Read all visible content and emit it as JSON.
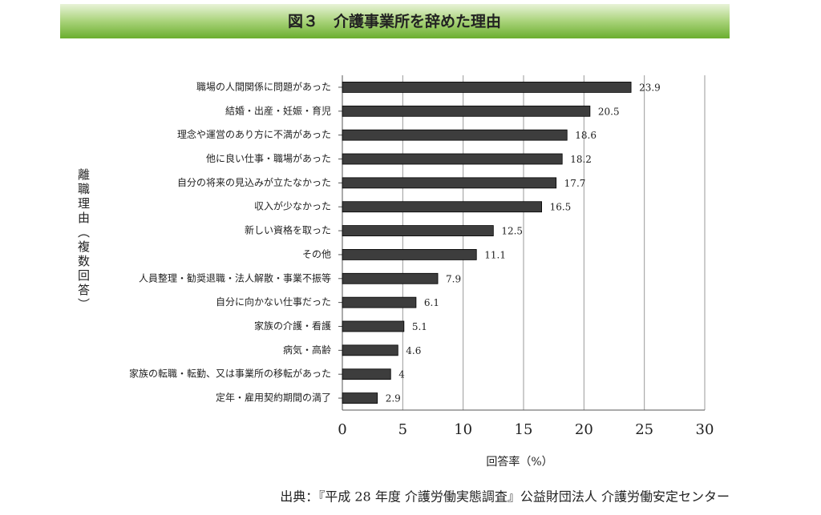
{
  "chart_data": {
    "type": "bar",
    "orientation": "horizontal",
    "title": "図３　介護事業所を辞めた理由",
    "y_label": "離職理由（複数回答）",
    "x_label": "回答率（%）",
    "source": "出典：『平成 28 年度  介護労働実態調査』公益財団法人  介護労働安定センター",
    "categories": [
      "職場の人間関係に問題があった",
      "結婚・出産・妊娠・育児",
      "理念や運営のあり方に不満があった",
      "他に良い仕事・職場があった",
      "自分の将来の見込みが立たなかった",
      "収入が少なかった",
      "新しい資格を取った",
      "その他",
      "人員整理・勧奨退職・法人解散・事業不振等",
      "自分に向かない仕事だった",
      "家族の介護・看護",
      "病気・高齢",
      "家族の転職・転勤、又は事業所の移転があった",
      "定年・雇用契約期間の満了"
    ],
    "values": [
      23.9,
      20.5,
      18.6,
      18.2,
      17.7,
      16.5,
      12.5,
      11.1,
      7.9,
      6.1,
      5.1,
      4.6,
      4,
      2.9
    ],
    "color": "#3d3d3d",
    "xlim": [
      0,
      30
    ],
    "xticks": [
      0,
      5,
      10,
      15,
      20,
      25,
      30
    ],
    "grid": true
  }
}
